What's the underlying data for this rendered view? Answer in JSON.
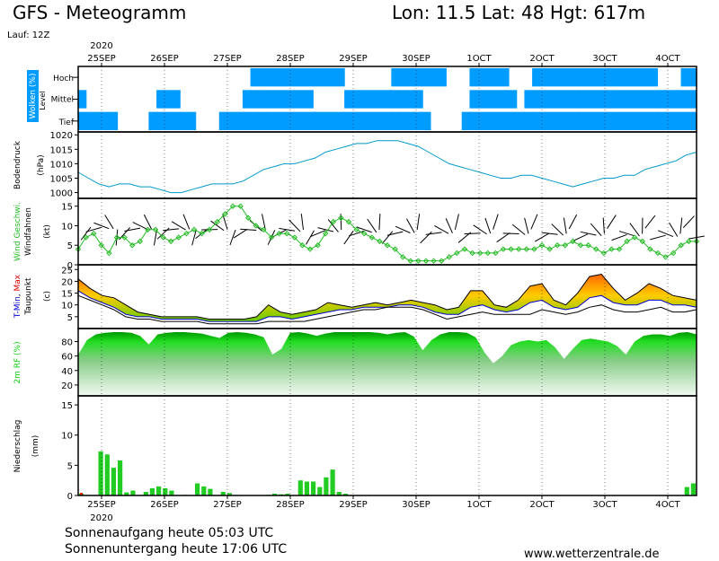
{
  "header": {
    "title": "GFS - Meteogramm",
    "location": "Lon: 11.5 Lat: 48 Hgt: 617m",
    "run": "Lauf: 12Z"
  },
  "year_top": "2020",
  "year_bottom": "2020",
  "date_labels": [
    "25SEP",
    "26SEP",
    "27SEP",
    "28SEP",
    "29SEP",
    "30SEP",
    "1OCT",
    "2OCT",
    "3OCT",
    "4OCT"
  ],
  "footer": {
    "sunrise": "Sonnenaufgang heute 05:03 UTC",
    "sunset": "Sonnenuntergang heute 17:06 UTC",
    "source": "www.wetterzentrale.de"
  },
  "colors": {
    "cloud": "#009cff",
    "pressure": "#0099cc",
    "wind_speed": "#22bb22",
    "tmin": "#0000cc",
    "tmax": "#dd0000",
    "dewpoint": "#000000",
    "humidity": "#11cc11",
    "precip": "#22cc22"
  },
  "chart_data": [
    {
      "type": "heatmap",
      "name": "clouds",
      "ylabel": "Wolken (%)",
      "yaxis_mid_label": "Level",
      "levels": [
        "Hoch",
        "Mittel",
        "Tief"
      ],
      "cover_hoch": [
        0,
        0,
        0,
        0,
        0,
        0,
        0,
        0,
        0,
        0,
        0,
        0,
        0,
        0,
        0,
        0,
        0,
        0,
        0,
        0,
        0,
        0,
        1,
        1,
        1,
        1,
        1,
        1,
        1,
        1,
        1,
        1,
        1,
        1,
        0,
        0,
        0,
        0,
        0,
        0,
        1,
        1,
        1,
        1,
        1,
        1,
        1,
        0,
        0,
        0,
        1,
        1,
        1,
        1,
        1,
        0,
        0,
        0,
        1,
        1,
        1,
        1,
        1,
        1,
        1,
        1,
        1,
        1,
        1,
        1,
        1,
        1,
        1,
        1,
        0,
        0,
        0,
        1,
        1
      ],
      "cover_mittel": [
        1,
        0,
        0,
        0,
        0,
        0,
        0,
        0,
        0,
        0,
        1,
        1,
        1,
        0,
        0,
        0,
        0,
        0,
        0,
        0,
        0,
        1,
        1,
        1,
        1,
        1,
        1,
        1,
        1,
        1,
        0,
        0,
        0,
        0,
        1,
        1,
        1,
        1,
        1,
        1,
        1,
        1,
        1,
        1,
        0,
        0,
        0,
        0,
        0,
        0,
        1,
        1,
        1,
        1,
        1,
        1,
        0,
        1,
        1,
        1,
        1,
        1,
        1,
        1,
        1,
        1,
        1,
        1,
        1,
        1,
        1,
        1,
        1,
        1,
        1,
        1,
        1,
        1,
        1
      ],
      "cover_tief": [
        1,
        1,
        1,
        1,
        1,
        0,
        0,
        0,
        0,
        1,
        1,
        1,
        1,
        1,
        1,
        0,
        0,
        0,
        1,
        1,
        1,
        1,
        1,
        1,
        1,
        1,
        1,
        1,
        1,
        1,
        1,
        1,
        1,
        1,
        1,
        1,
        1,
        1,
        1,
        1,
        1,
        1,
        1,
        1,
        1,
        0,
        0,
        0,
        0,
        1,
        1,
        1,
        1,
        1,
        1,
        1,
        1,
        1,
        1,
        1,
        1,
        1,
        1,
        1,
        1,
        1,
        1,
        1,
        1,
        1,
        1,
        1,
        1,
        1,
        1,
        1,
        1,
        1,
        1
      ]
    },
    {
      "type": "line",
      "name": "pressure",
      "ylabel": "Bodendruck",
      "unit": "(hPa)",
      "ylim": [
        998,
        1021
      ],
      "ticks": [
        1000,
        1005,
        1010,
        1015,
        1020
      ],
      "values": [
        1007,
        1005,
        1003,
        1002,
        1003,
        1003,
        1002,
        1002,
        1001,
        1000,
        1000,
        1001,
        1002,
        1003,
        1003,
        1003,
        1004,
        1006,
        1008,
        1009,
        1010,
        1010,
        1011,
        1012,
        1014,
        1015,
        1016,
        1017,
        1017,
        1018,
        1018,
        1018,
        1017,
        1016,
        1014,
        1012,
        1010,
        1009,
        1008,
        1007,
        1006,
        1005,
        1005,
        1006,
        1006,
        1005,
        1004,
        1003,
        1002,
        1003,
        1004,
        1005,
        1005,
        1006,
        1006,
        1008,
        1009,
        1010,
        1011,
        1013,
        1014
      ]
    },
    {
      "type": "line",
      "name": "wind",
      "ylabel": "Wind Geschwi.",
      "ylabel2": "Windfahnen",
      "unit": "(kt)",
      "ylim": [
        0,
        17
      ],
      "ticks": [
        0,
        5,
        10,
        15
      ],
      "values": [
        4,
        7,
        8,
        5,
        3,
        7,
        7,
        5,
        6,
        9,
        9,
        7,
        6,
        7,
        8,
        9,
        8,
        9,
        11,
        13,
        15,
        15,
        12,
        10,
        9,
        7,
        8,
        8,
        7,
        5,
        4,
        5,
        8,
        11,
        12,
        11,
        9,
        8,
        7,
        6,
        5,
        4,
        2,
        1,
        1,
        1,
        1,
        1,
        2,
        3,
        4,
        3,
        3,
        3,
        3,
        4,
        4,
        4,
        4,
        4,
        5,
        4,
        5,
        5,
        6,
        5,
        5,
        4,
        3,
        4,
        4,
        6,
        7,
        6,
        4,
        3,
        2,
        3,
        5,
        6,
        6
      ]
    },
    {
      "type": "area",
      "name": "temperature",
      "ylabel": "T-Min, Max",
      "ylabel2": "Taupunkt",
      "unit": "(c)",
      "ylim": [
        0,
        27
      ],
      "ticks": [
        5,
        10,
        15,
        20,
        25
      ],
      "series": [
        {
          "name": "T-Max",
          "values": [
            21,
            17,
            14,
            13,
            10,
            7,
            6,
            5,
            5,
            5,
            5,
            4,
            4,
            4,
            4,
            5,
            10,
            7,
            6,
            7,
            8,
            11,
            10,
            9,
            10,
            11,
            10,
            11,
            12,
            11,
            10,
            8,
            9,
            16,
            16,
            10,
            9,
            12,
            18,
            19,
            12,
            10,
            15,
            22,
            23,
            17,
            12,
            15,
            19,
            17,
            14,
            13,
            12
          ]
        },
        {
          "name": "T-Min",
          "values": [
            16,
            13,
            11,
            9,
            6,
            5,
            5,
            4,
            4,
            4,
            4,
            3,
            3,
            3,
            3,
            3,
            5,
            5,
            4,
            5,
            6,
            7,
            8,
            8,
            9,
            9,
            9,
            10,
            10,
            9,
            7,
            6,
            6,
            9,
            10,
            8,
            7,
            8,
            11,
            12,
            9,
            8,
            9,
            13,
            14,
            11,
            10,
            10,
            12,
            12,
            10,
            10,
            9
          ]
        },
        {
          "name": "Taupunkt",
          "values": [
            14,
            12,
            10,
            8,
            5,
            4,
            4,
            3,
            3,
            3,
            3,
            2,
            2,
            2,
            2,
            2,
            3,
            3,
            3,
            3,
            4,
            5,
            6,
            7,
            8,
            8,
            9,
            9,
            9,
            8,
            6,
            4,
            5,
            6,
            7,
            6,
            6,
            6,
            6,
            8,
            7,
            6,
            7,
            9,
            10,
            8,
            7,
            7,
            8,
            9,
            7,
            7,
            8
          ]
        }
      ]
    },
    {
      "type": "area",
      "name": "humidity",
      "ylabel": "2m RF (%)",
      "ylim": [
        5,
        98
      ],
      "ticks": [
        20,
        40,
        60,
        80
      ],
      "values": [
        62,
        82,
        90,
        92,
        93,
        93,
        92,
        88,
        76,
        90,
        92,
        93,
        93,
        92,
        91,
        88,
        85,
        92,
        93,
        92,
        90,
        86,
        62,
        70,
        92,
        93,
        91,
        88,
        91,
        93,
        93,
        93,
        93,
        93,
        92,
        90,
        92,
        93,
        87,
        68,
        82,
        90,
        93,
        93,
        92,
        86,
        65,
        50,
        60,
        75,
        80,
        82,
        80,
        82,
        72,
        56,
        70,
        82,
        84,
        82,
        80,
        74,
        62,
        80,
        88,
        90,
        90,
        88,
        92,
        93,
        90
      ]
    },
    {
      "type": "bar",
      "name": "precipitation",
      "ylabel": "Niederschlag",
      "unit": "(mm)",
      "ylim": [
        0,
        16.5
      ],
      "ticks": [
        0,
        5,
        10,
        15
      ],
      "values": [
        0.3,
        0.1,
        0,
        7.3,
        6.8,
        4.6,
        5.8,
        0.5,
        0.8,
        0,
        0.6,
        1.2,
        1.5,
        1.2,
        0.8,
        0,
        0.1,
        0,
        2,
        1.5,
        1.1,
        0,
        0.6,
        0.4,
        0,
        0,
        0,
        0,
        0,
        0.1,
        0.3,
        0.2,
        0.3,
        0,
        2.5,
        2.3,
        2.3,
        1.4,
        3,
        4.3,
        0.6,
        0.3,
        0,
        0,
        0,
        0,
        0,
        0,
        0,
        0,
        0,
        0,
        0,
        0,
        0,
        0,
        0,
        0,
        0,
        0,
        0,
        0,
        0,
        0,
        0,
        0,
        0,
        0,
        0,
        0,
        0,
        0,
        0,
        0,
        0,
        0,
        0,
        0,
        0,
        0,
        0,
        0,
        0,
        0,
        0,
        0,
        0,
        0,
        0,
        0,
        0,
        0,
        0,
        0,
        1.4,
        2
      ]
    }
  ]
}
